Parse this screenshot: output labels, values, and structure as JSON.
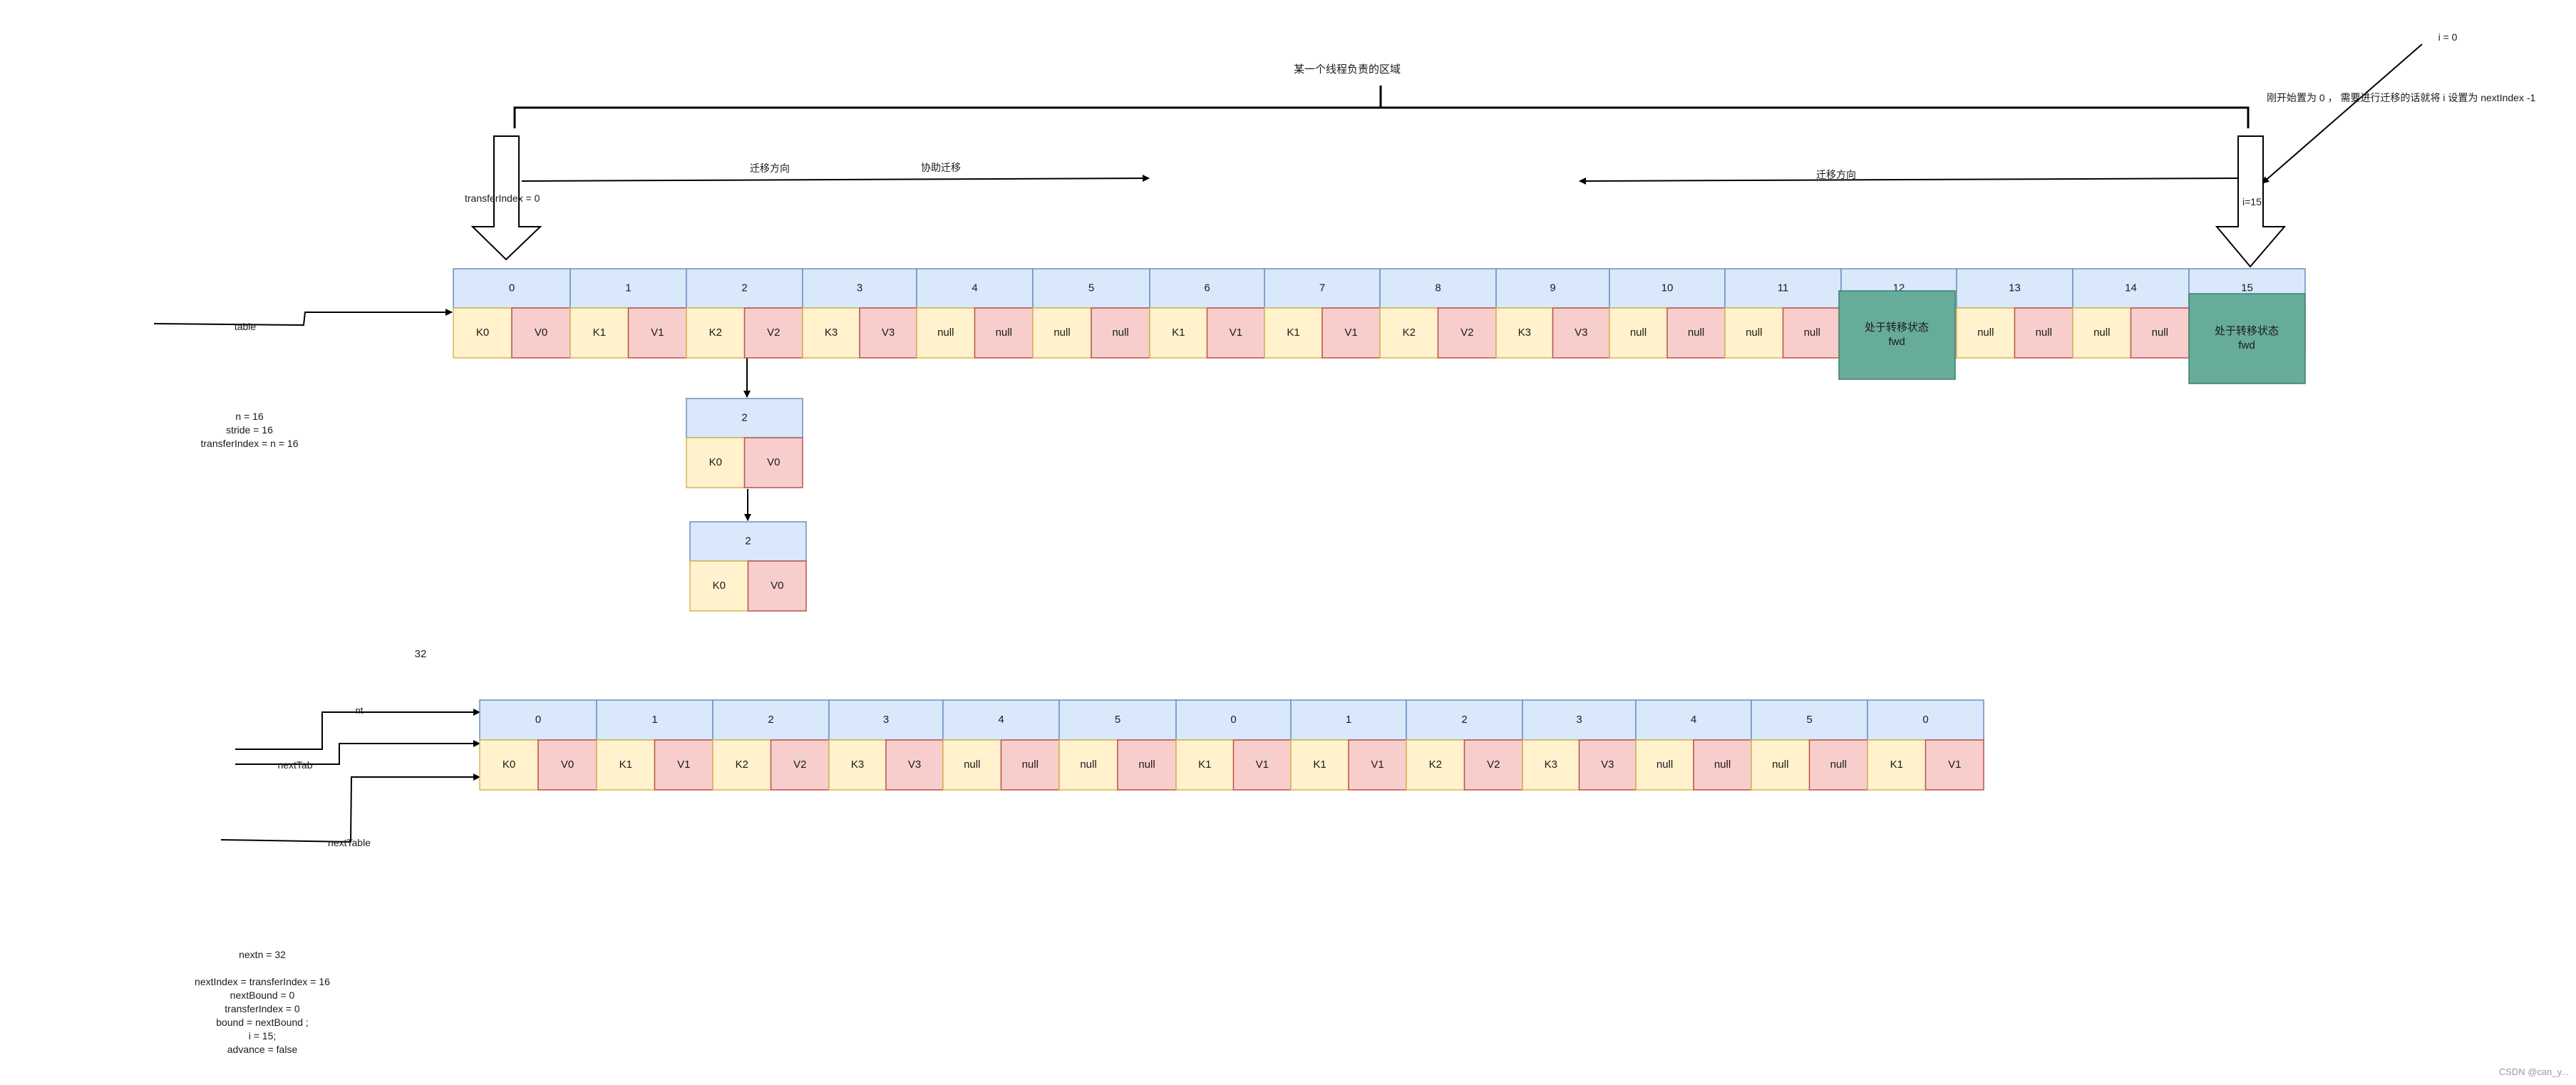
{
  "colors": {
    "header_fill": "#dae8fc",
    "header_stroke": "#6c8ebf",
    "key_fill": "#fff2cc",
    "key_stroke": "#d6b656",
    "value_fill": "#f8cecc",
    "value_stroke": "#b85450",
    "fwd_fill": "#67ab9a",
    "fwd_stroke": "#3f7f6f",
    "line": "#000000"
  },
  "annotations": {
    "region_label": "某一个线程负责的区域",
    "i_zero": "i = 0",
    "init_note": "刚开始置为 0 ， 需要进行迁移的话就将 i 设置为 nextIndex  -1",
    "migrate_direction_left": "迁移方向",
    "assist_migrate": "协助迁移",
    "migrate_direction_right": "迁移方向",
    "transfer_index": "transferIndex = 0",
    "i_fifteen": "i=15",
    "table_label": "table",
    "state_lines": [
      "n = 16",
      "stride = 16",
      "transferIndex = n = 16"
    ],
    "size_32": "32",
    "nt_label": "nt",
    "nexttab_label": "nextTab",
    "nexttable_label": "nextTable",
    "bottom_lines": [
      "nextn = 32",
      "",
      "nextIndex =  transferIndex = 16",
      "nextBound = 0",
      "transferIndex = 0",
      "bound = nextBound ;",
      "i = 15;",
      "advance = false"
    ],
    "watermark": "CSDN @can_y..."
  },
  "table": {
    "cells": [
      {
        "index": "0",
        "key": "K0",
        "value": "V0"
      },
      {
        "index": "1",
        "key": "K1",
        "value": "V1"
      },
      {
        "index": "2",
        "key": "K2",
        "value": "V2"
      },
      {
        "index": "3",
        "key": "K3",
        "value": "V3"
      },
      {
        "index": "4",
        "key": "null",
        "value": "null"
      },
      {
        "index": "5",
        "key": "null",
        "value": "null"
      },
      {
        "index": "6",
        "key": "K1",
        "value": "V1"
      },
      {
        "index": "7",
        "key": "K1",
        "value": "V1"
      },
      {
        "index": "8",
        "key": "K2",
        "value": "V2"
      },
      {
        "index": "9",
        "key": "K3",
        "value": "V3"
      },
      {
        "index": "10",
        "key": "null",
        "value": "null"
      },
      {
        "index": "11",
        "key": "null",
        "value": "null"
      },
      {
        "index": "12",
        "key": "",
        "value": "",
        "forward": [
          "处于转移状态",
          "fwd"
        ]
      },
      {
        "index": "13",
        "key": "null",
        "value": "null"
      },
      {
        "index": "14",
        "key": "null",
        "value": "null"
      },
      {
        "index": "15",
        "key": "",
        "value": "",
        "forward": [
          "处于转移状态",
          "fwd"
        ]
      }
    ]
  },
  "chain": [
    {
      "index": "2",
      "key": "K0",
      "value": "V0"
    },
    {
      "index": "2",
      "key": "K0",
      "value": "V0"
    }
  ],
  "next_table": {
    "cells": [
      {
        "index": "0",
        "key": "K0",
        "value": "V0"
      },
      {
        "index": "1",
        "key": "K1",
        "value": "V1"
      },
      {
        "index": "2",
        "key": "K2",
        "value": "V2"
      },
      {
        "index": "3",
        "key": "K3",
        "value": "V3"
      },
      {
        "index": "4",
        "key": "null",
        "value": "null"
      },
      {
        "index": "5",
        "key": "null",
        "value": "null"
      },
      {
        "index": "0",
        "key": "K1",
        "value": "V1"
      },
      {
        "index": "1",
        "key": "K1",
        "value": "V1"
      },
      {
        "index": "2",
        "key": "K2",
        "value": "V2"
      },
      {
        "index": "3",
        "key": "K3",
        "value": "V3"
      },
      {
        "index": "4",
        "key": "null",
        "value": "null"
      },
      {
        "index": "5",
        "key": "null",
        "value": "null"
      },
      {
        "index": "0",
        "key": "K1",
        "value": "V1"
      }
    ]
  }
}
